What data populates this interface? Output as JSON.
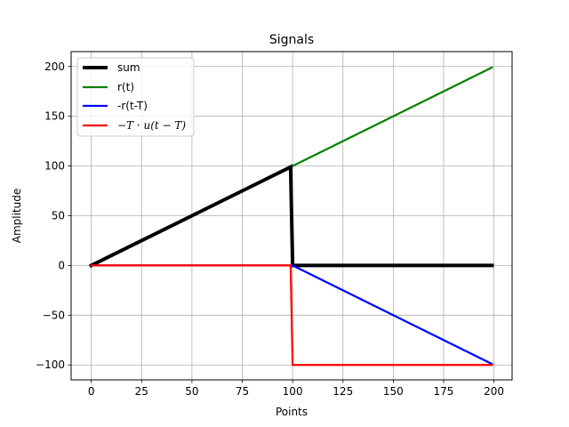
{
  "chart_data": {
    "type": "line",
    "title": "Signals",
    "xlabel": "Points",
    "ylabel": "Amplitude",
    "xlim": [
      -10,
      209
    ],
    "ylim": [
      -115,
      215
    ],
    "xticks": [
      0,
      25,
      50,
      75,
      100,
      125,
      150,
      175,
      200
    ],
    "yticks": [
      -100,
      -50,
      0,
      50,
      100,
      150,
      200
    ],
    "xtick_labels": [
      "0",
      "25",
      "50",
      "75",
      "100",
      "125",
      "150",
      "175",
      "200"
    ],
    "ytick_labels": [
      "−100",
      "−50",
      "0",
      "50",
      "100",
      "150",
      "200"
    ],
    "grid": true,
    "legend_position": "top-left",
    "series": [
      {
        "name": "sum",
        "color": "#000000",
        "x": [
          0,
          99,
          100,
          199
        ],
        "y": [
          0,
          99,
          0,
          0
        ]
      },
      {
        "name": "r(t)",
        "color": "#008000",
        "x": [
          0,
          199
        ],
        "y": [
          0,
          199
        ]
      },
      {
        "name": "-r(t-T)",
        "color": "#0000ff",
        "x": [
          0,
          99,
          100,
          199
        ],
        "y": [
          0,
          0,
          0,
          -99
        ]
      },
      {
        "name": "−T · u(t − T)",
        "color": "#ff0000",
        "x": [
          0,
          99,
          100,
          199
        ],
        "y": [
          0,
          0,
          -100,
          -100
        ]
      }
    ]
  }
}
